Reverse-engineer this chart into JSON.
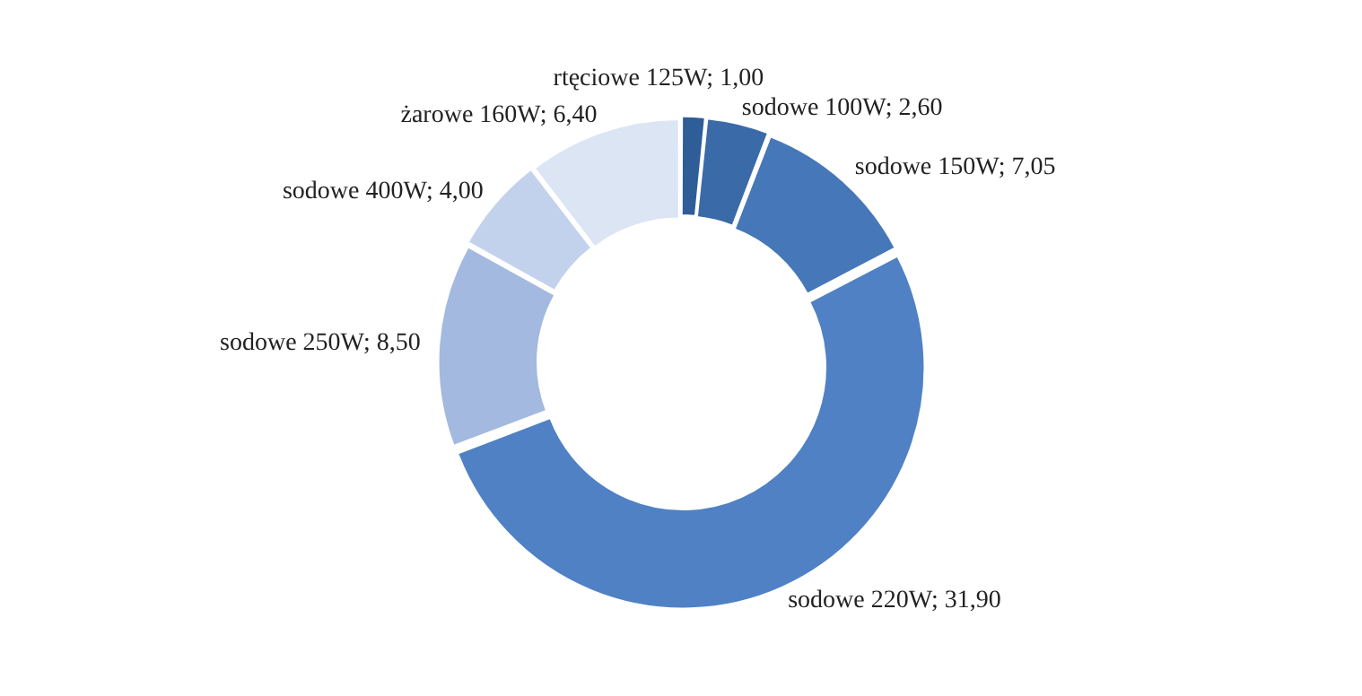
{
  "chart_data": {
    "type": "donut",
    "categories": [
      "rtęciowe 125W",
      "sodowe 100W",
      "sodowe 150W",
      "sodowe 220W",
      "sodowe 250W",
      "sodowe 400W",
      "żarowe 160W"
    ],
    "values": [
      1.0,
      2.6,
      7.05,
      31.9,
      8.5,
      4.0,
      6.4
    ],
    "value_labels": [
      "1,00",
      "2,60",
      "7,05",
      "31,90",
      "8,50",
      "4,00",
      "6,40"
    ],
    "colors": [
      "#2e5d98",
      "#3a6aa8",
      "#4677b8",
      "#4f81c4",
      "#a3b9df",
      "#c3d2ec",
      "#dce5f4"
    ],
    "legend": false
  }
}
